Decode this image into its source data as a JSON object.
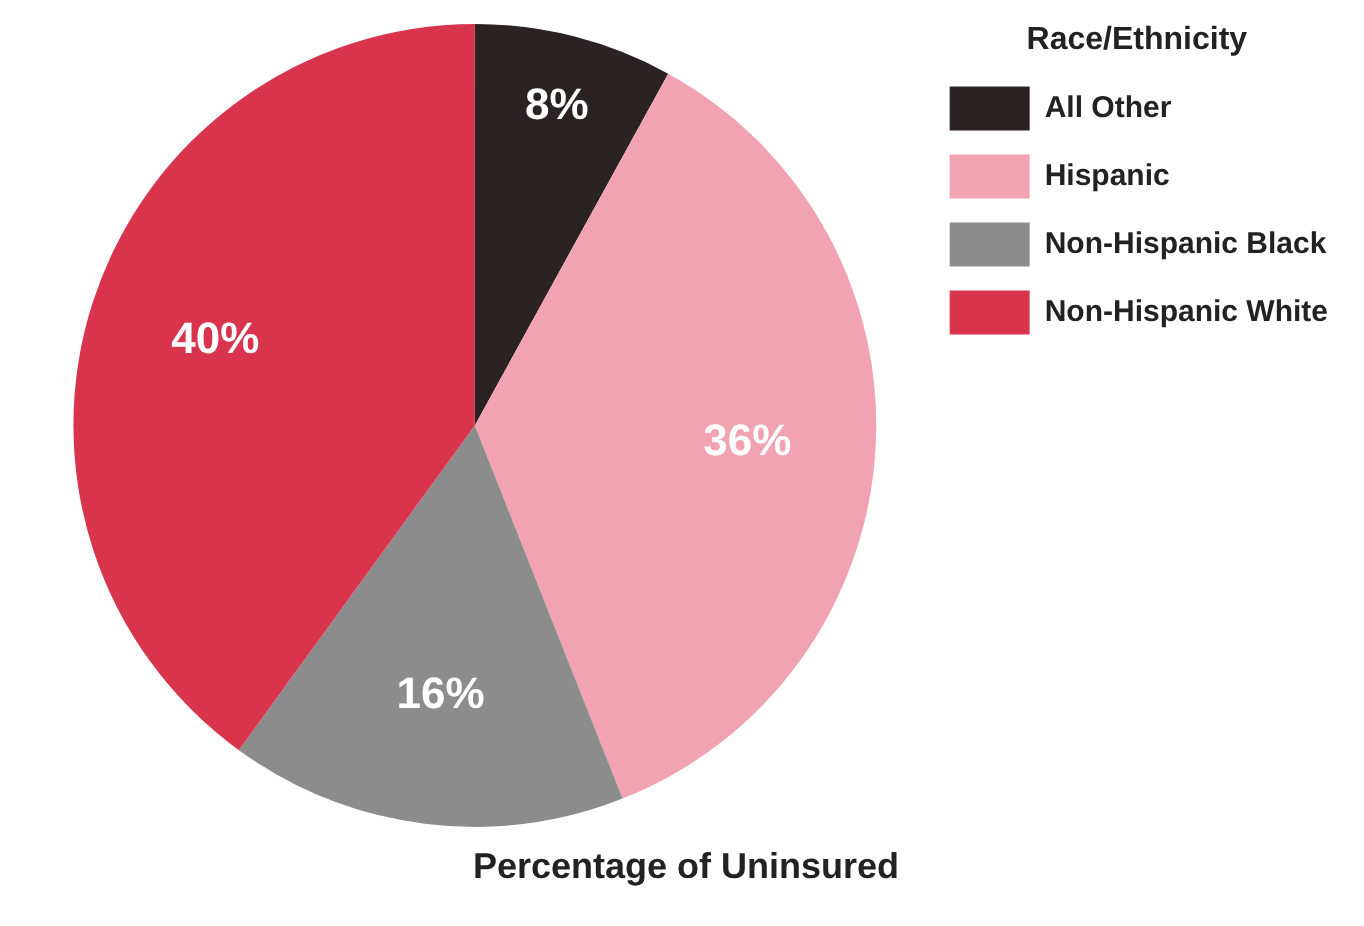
{
  "chart_data": {
    "type": "pie",
    "title": "Percentage of Uninsured",
    "legend_title": "Race/Ethnicity",
    "legend": "top right",
    "categories": [
      "All Other",
      "Hispanic",
      "Non-Hispanic Black",
      "Non-Hispanic White"
    ],
    "values": [
      8,
      36,
      16,
      40
    ],
    "colors": [
      "#2b2323",
      "#f2a3b2",
      "#8c8c8c",
      "#d9344e"
    ],
    "value_labels": [
      "8%",
      "36%",
      "16%",
      "40%"
    ]
  }
}
